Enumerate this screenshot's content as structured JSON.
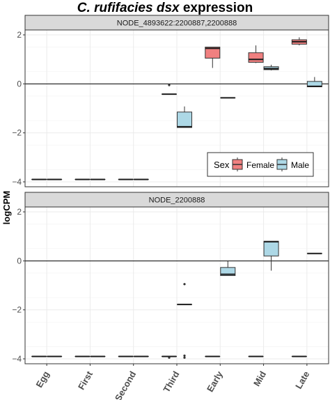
{
  "chart_data": {
    "type": "box",
    "title_italic": "C. rufifacies dsx",
    "title_rest": " expression",
    "ylabel": "logCPM",
    "categories": [
      "Egg",
      "First",
      "Second",
      "Third",
      "Early",
      "Mid",
      "Late"
    ],
    "ylim": [
      -4.2,
      2.2
    ],
    "yticks": [
      -4,
      -2,
      0,
      2
    ],
    "grid": true,
    "legend": {
      "title": "Sex",
      "position": "inside-bottom-right",
      "entries": [
        {
          "name": "Female",
          "color": "#F08080"
        },
        {
          "name": "Male",
          "color": "#ADD8E6"
        }
      ]
    },
    "panels": [
      {
        "strip": "NODE_4893622:2200887,2200888",
        "boxes": [
          {
            "category": "Egg",
            "sex": "Female",
            "min": -3.9,
            "q1": -3.9,
            "median": -3.9,
            "q3": -3.9,
            "max": -3.9,
            "outliers": []
          },
          {
            "category": "Egg",
            "sex": "Male",
            "min": -3.9,
            "q1": -3.9,
            "median": -3.9,
            "q3": -3.9,
            "max": -3.9,
            "outliers": []
          },
          {
            "category": "First",
            "sex": "Female",
            "min": -3.9,
            "q1": -3.9,
            "median": -3.9,
            "q3": -3.9,
            "max": -3.9,
            "outliers": []
          },
          {
            "category": "First",
            "sex": "Male",
            "min": -3.9,
            "q1": -3.9,
            "median": -3.9,
            "q3": -3.9,
            "max": -3.9,
            "outliers": []
          },
          {
            "category": "Second",
            "sex": "Female",
            "min": -3.9,
            "q1": -3.9,
            "median": -3.9,
            "q3": -3.9,
            "max": -3.9,
            "outliers": []
          },
          {
            "category": "Second",
            "sex": "Male",
            "min": -3.9,
            "q1": -3.9,
            "median": -3.9,
            "q3": -3.9,
            "max": -3.9,
            "outliers": []
          },
          {
            "category": "Third",
            "sex": "Female",
            "min": -0.42,
            "q1": -0.42,
            "median": -0.42,
            "q3": -0.42,
            "max": -0.42,
            "outliers": [
              -0.05
            ]
          },
          {
            "category": "Third",
            "sex": "Male",
            "min": -1.78,
            "q1": -1.78,
            "median": -1.75,
            "q3": -1.15,
            "max": -0.92,
            "outliers": []
          },
          {
            "category": "Early",
            "sex": "Female",
            "min": 0.65,
            "q1": 1.05,
            "median": 1.45,
            "q3": 1.5,
            "max": 1.5,
            "outliers": []
          },
          {
            "category": "Early",
            "sex": "Male",
            "min": -0.57,
            "q1": -0.57,
            "median": -0.57,
            "q3": -0.57,
            "max": -0.57,
            "outliers": []
          },
          {
            "category": "Mid",
            "sex": "Female",
            "min": 0.85,
            "q1": 0.88,
            "median": 1.0,
            "q3": 1.27,
            "max": 1.57,
            "outliers": []
          },
          {
            "category": "Mid",
            "sex": "Male",
            "min": 0.55,
            "q1": 0.58,
            "median": 0.62,
            "q3": 0.7,
            "max": 0.78,
            "outliers": []
          },
          {
            "category": "Late",
            "sex": "Female",
            "min": 1.57,
            "q1": 1.62,
            "median": 1.72,
            "q3": 1.8,
            "max": 1.9,
            "outliers": []
          },
          {
            "category": "Late",
            "sex": "Male",
            "min": -0.12,
            "q1": -0.12,
            "median": -0.1,
            "q3": 0.1,
            "max": 0.28,
            "outliers": []
          }
        ]
      },
      {
        "strip": "NODE_2200888",
        "boxes": [
          {
            "category": "Egg",
            "sex": "Female",
            "min": -3.9,
            "q1": -3.9,
            "median": -3.9,
            "q3": -3.9,
            "max": -3.9,
            "outliers": []
          },
          {
            "category": "Egg",
            "sex": "Male",
            "min": -3.9,
            "q1": -3.9,
            "median": -3.9,
            "q3": -3.9,
            "max": -3.9,
            "outliers": []
          },
          {
            "category": "First",
            "sex": "Female",
            "min": -3.9,
            "q1": -3.9,
            "median": -3.9,
            "q3": -3.9,
            "max": -3.9,
            "outliers": []
          },
          {
            "category": "First",
            "sex": "Male",
            "min": -3.9,
            "q1": -3.9,
            "median": -3.9,
            "q3": -3.9,
            "max": -3.9,
            "outliers": []
          },
          {
            "category": "Second",
            "sex": "Female",
            "min": -3.9,
            "q1": -3.9,
            "median": -3.9,
            "q3": -3.9,
            "max": -3.9,
            "outliers": []
          },
          {
            "category": "Second",
            "sex": "Male",
            "min": -3.9,
            "q1": -3.9,
            "median": -3.9,
            "q3": -3.9,
            "max": -3.9,
            "outliers": []
          },
          {
            "category": "Third",
            "sex": "Female",
            "min": -3.9,
            "q1": -3.9,
            "median": -3.9,
            "q3": -3.9,
            "max": -3.9,
            "outliers": [
              -3.95
            ]
          },
          {
            "category": "Third",
            "sex": "Male",
            "min": -1.78,
            "q1": -1.78,
            "median": -1.78,
            "q3": -1.78,
            "max": -1.78,
            "outliers": [
              -0.95,
              -3.87,
              -3.95
            ]
          },
          {
            "category": "Early",
            "sex": "Female",
            "min": -3.9,
            "q1": -3.9,
            "median": -3.9,
            "q3": -3.9,
            "max": -3.9,
            "outliers": []
          },
          {
            "category": "Early",
            "sex": "Male",
            "min": -0.6,
            "q1": -0.6,
            "median": -0.55,
            "q3": -0.27,
            "max": 0.0,
            "outliers": []
          },
          {
            "category": "Mid",
            "sex": "Female",
            "min": -3.9,
            "q1": -3.9,
            "median": -3.9,
            "q3": -3.9,
            "max": -3.9,
            "outliers": []
          },
          {
            "category": "Mid",
            "sex": "Male",
            "min": -0.4,
            "q1": 0.2,
            "median": 0.78,
            "q3": 0.8,
            "max": 0.8,
            "outliers": []
          },
          {
            "category": "Late",
            "sex": "Female",
            "min": -3.9,
            "q1": -3.9,
            "median": -3.9,
            "q3": -3.9,
            "max": -3.9,
            "outliers": []
          },
          {
            "category": "Late",
            "sex": "Male",
            "min": 0.3,
            "q1": 0.3,
            "median": 0.3,
            "q3": 0.3,
            "max": 0.3,
            "outliers": []
          }
        ]
      }
    ]
  }
}
